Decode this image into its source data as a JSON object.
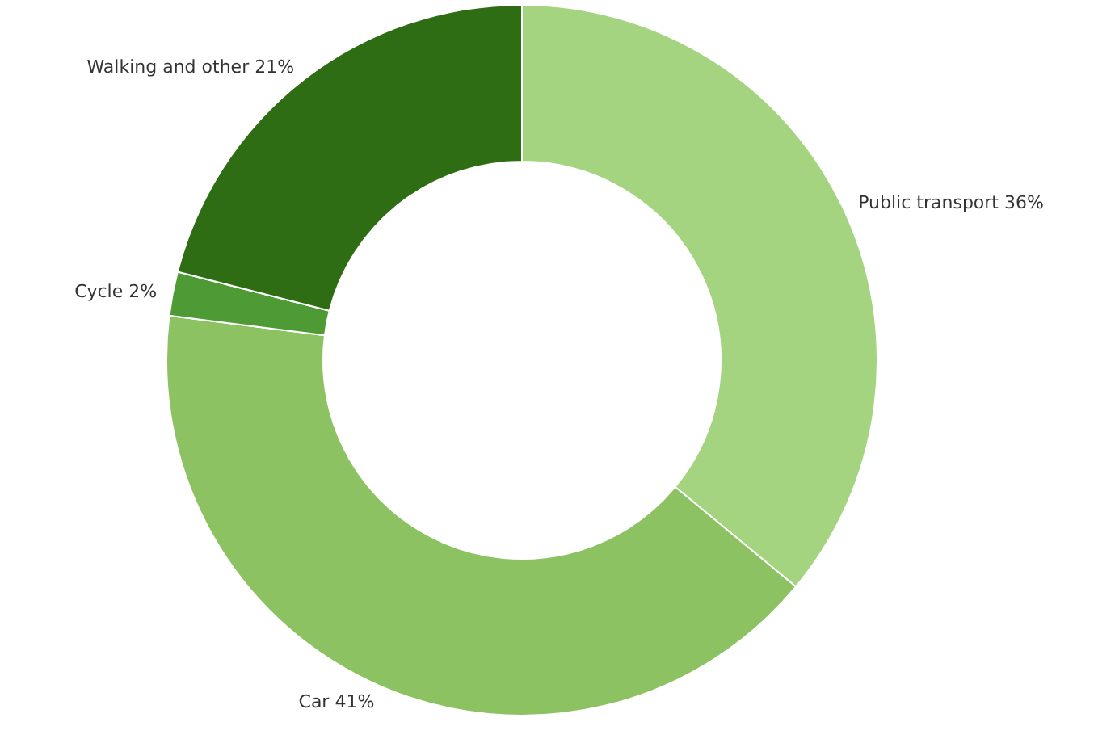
{
  "chart_data": {
    "type": "donut",
    "categories": [
      "Public transport",
      "Car",
      "Cycle",
      "Walking and other"
    ],
    "values": [
      36,
      41,
      2,
      21
    ],
    "value_labels": [
      "36%",
      "41%",
      "2%",
      "21%"
    ],
    "colors": [
      "#a4d47f",
      "#8dc263",
      "#4e9b36",
      "#2f6d14"
    ]
  }
}
